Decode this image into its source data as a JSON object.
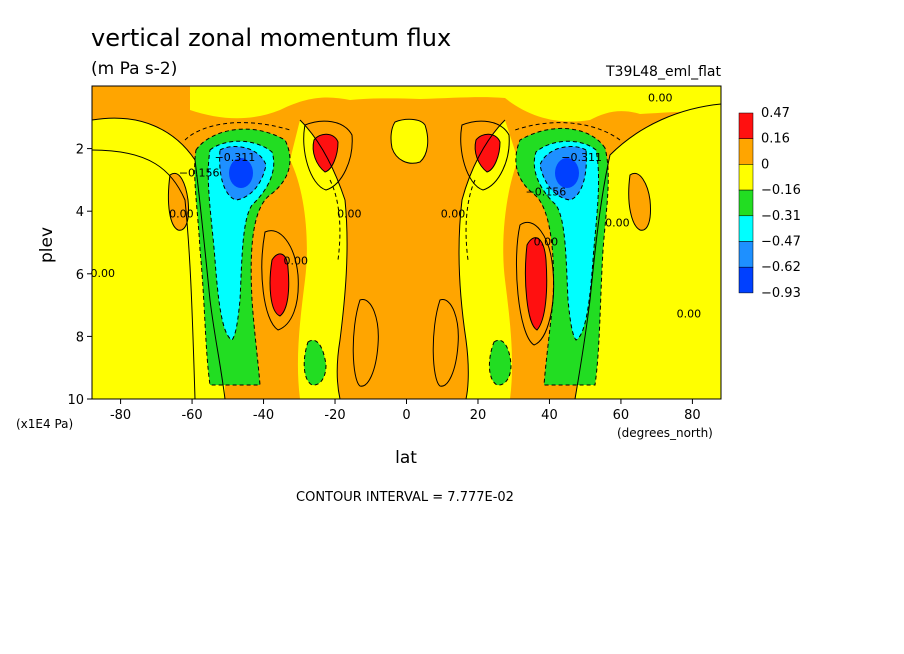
{
  "chart_data": {
    "type": "heatmap",
    "title": "vertical zonal momentum flux",
    "units": "(m Pa s-2)",
    "run_label": "T39L48_eml_flat",
    "xlabel": "lat",
    "x_units": "(degrees_north)",
    "ylabel": "plev",
    "y_units": "(x1E4 Pa)",
    "xlim": [
      -88,
      88
    ],
    "ylim": [
      10,
      0
    ],
    "x_ticks": [
      "-80",
      "-60",
      "-40",
      "-20",
      "0",
      "20",
      "40",
      "60",
      "80"
    ],
    "x_tick_values": [
      -80,
      -60,
      -40,
      -20,
      0,
      20,
      40,
      60,
      80
    ],
    "y_ticks": [
      "2",
      "4",
      "6",
      "8",
      "10"
    ],
    "y_tick_values": [
      2,
      4,
      6,
      8,
      10
    ],
    "footer": "CONTOUR INTERVAL = 7.777E-02",
    "legend": {
      "placement": "right",
      "labels": [
        "0.47",
        "0.16",
        "0",
        "−0.16",
        "−0.31",
        "−0.47",
        "−0.62",
        "−0.93"
      ],
      "colors": [
        "#ff1010",
        "#ffa500",
        "#ffff00",
        "#22dd22",
        "#00ffff",
        "#1e90ff",
        "#0040ff"
      ]
    },
    "contour_labels": [
      {
        "text": "0.00",
        "lat": 71,
        "plev": 0.4
      },
      {
        "text": "−0.311",
        "lat": -48,
        "plev": 2.3
      },
      {
        "text": "−0.311",
        "lat": 49,
        "plev": 2.3
      },
      {
        "text": "−0.156",
        "lat": -58,
        "plev": 2.8
      },
      {
        "text": "−0.156",
        "lat": 39,
        "plev": 3.4
      },
      {
        "text": "0.00",
        "lat": -63,
        "plev": 4.1
      },
      {
        "text": "0.00",
        "lat": -16,
        "plev": 4.1
      },
      {
        "text": "0.00",
        "lat": 13,
        "plev": 4.1
      },
      {
        "text": "0.00",
        "lat": 59,
        "plev": 4.4
      },
      {
        "text": "0.00",
        "lat": 39,
        "plev": 5.0
      },
      {
        "text": "0.00",
        "lat": -31,
        "plev": 5.6
      },
      {
        "text": "0.00",
        "lat": -85,
        "plev": 6.0
      },
      {
        "text": "0.00",
        "lat": 79,
        "plev": 7.3
      }
    ],
    "fields": [
      {
        "level": "0.16 to 0.47",
        "color": "#ffa500",
        "feature": "background flux region"
      },
      {
        "level": "0 to 0.16",
        "color": "#ffff00",
        "feature": "weak flux regions"
      },
      {
        "level": "-0.16 to 0",
        "color": "#22dd22",
        "feature": "mid-latitude jets"
      },
      {
        "level": "-0.31 to -0.47",
        "color": "#00ffff",
        "feature": "jet cores"
      },
      {
        "level": "-0.62 to -0.93",
        "color": "#0040ff",
        "feature": "maximum at ~45 deg, plev 3"
      },
      {
        "level": "> 0.47",
        "color": "#ff1010",
        "feature": "maxima at +/-22 deg plev 2 and +/-36 deg plev 6.5"
      }
    ]
  }
}
